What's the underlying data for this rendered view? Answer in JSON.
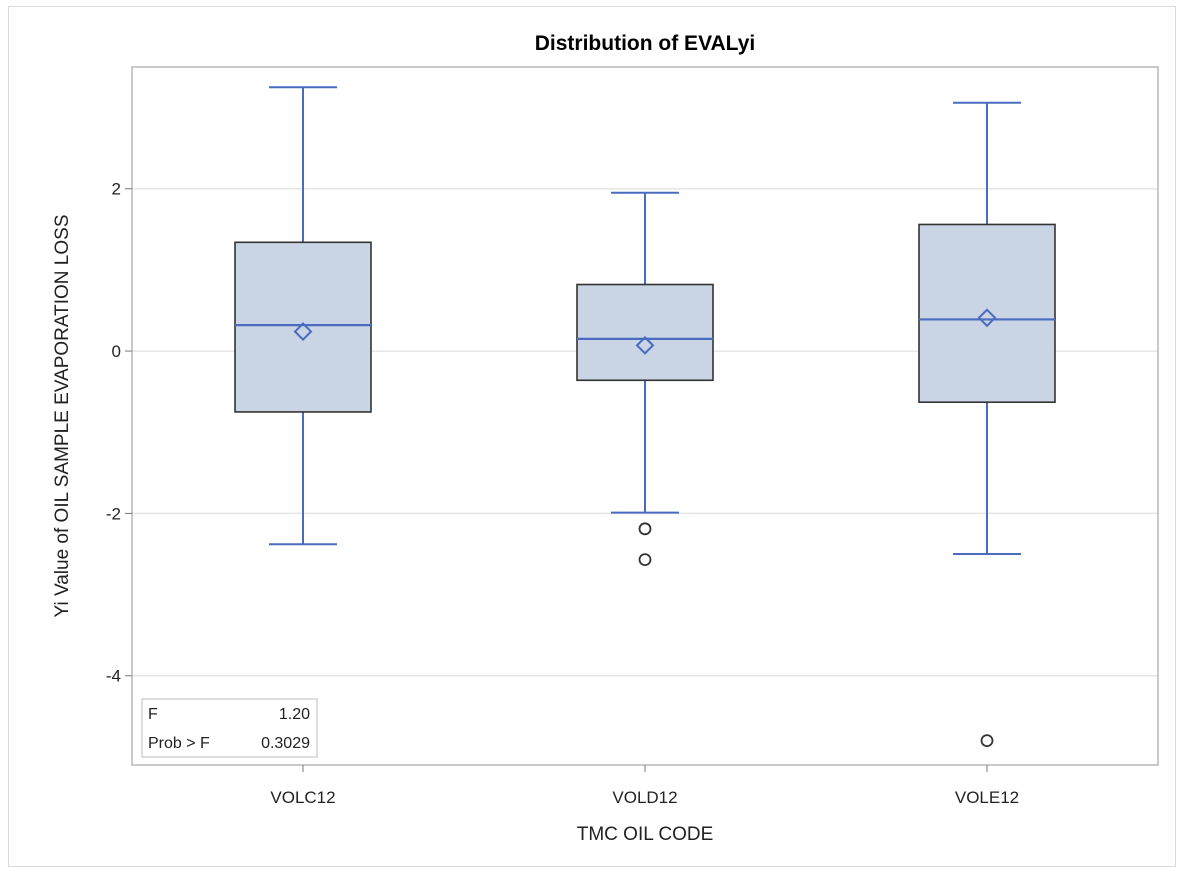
{
  "chart_data": {
    "type": "box",
    "title": "Distribution of EVALyi",
    "xlabel": "TMC OIL CODE",
    "ylabel": "Yi Value of OIL SAMPLE EVAPORATION LOSS",
    "categories": [
      "VOLC12",
      "VOLD12",
      "VOLE12"
    ],
    "ylim": [
      -5.1,
      3.5
    ],
    "yticks": [
      -4,
      -2,
      0,
      2
    ],
    "grid": true,
    "boxes": [
      {
        "category": "VOLC12",
        "whisker_low": -2.38,
        "q1": -0.75,
        "median": 0.32,
        "mean": 0.24,
        "q3": 1.34,
        "whisker_high": 3.25,
        "outliers": []
      },
      {
        "category": "VOLD12",
        "whisker_low": -1.99,
        "q1": -0.36,
        "median": 0.15,
        "mean": 0.07,
        "q3": 0.82,
        "whisker_high": 1.95,
        "outliers": [
          -2.19,
          -2.57
        ]
      },
      {
        "category": "VOLE12",
        "whisker_low": -2.5,
        "q1": -0.63,
        "median": 0.39,
        "mean": 0.41,
        "q3": 1.56,
        "whisker_high": 3.06,
        "outliers": [
          -4.8
        ]
      }
    ],
    "stats": [
      {
        "label": "F",
        "value": "1.20"
      },
      {
        "label": "Prob > F",
        "value": "0.3029"
      }
    ],
    "colors": {
      "box_fill": "#c9d4e5",
      "box_stroke": "#333333",
      "whisker": "#4a6bbf",
      "median": "#4a6bbf",
      "mean_marker": "#4a6bbf",
      "outlier": "#333333",
      "grid": "#e6e6e6"
    }
  }
}
